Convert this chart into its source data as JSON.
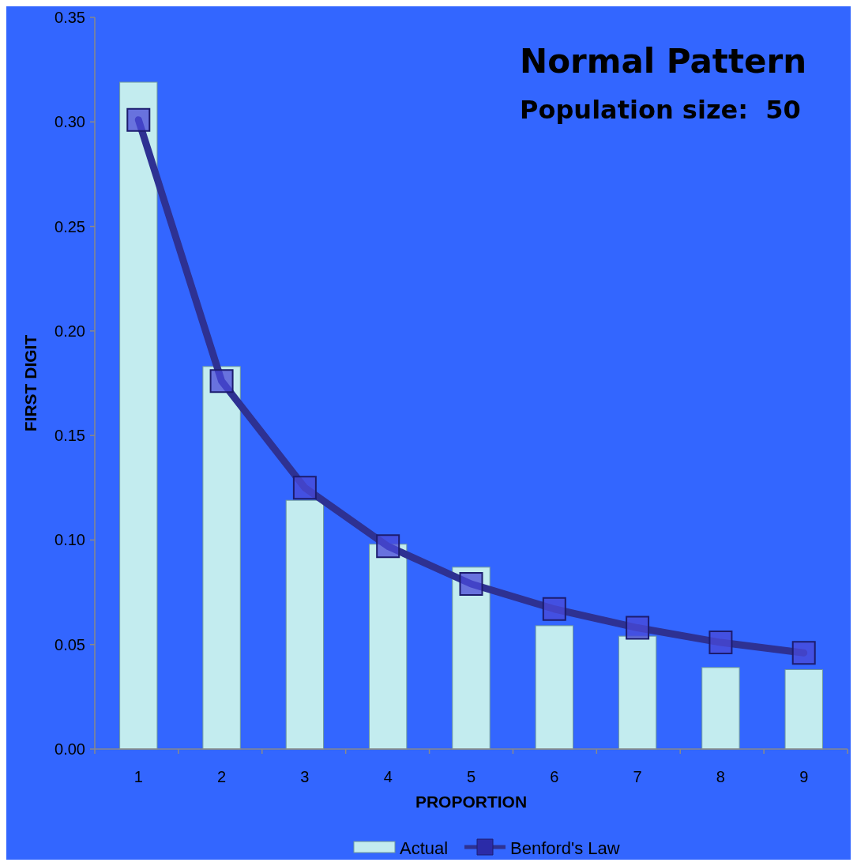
{
  "chart_data": {
    "type": "bar",
    "title": "Normal Pattern",
    "subtitle": "Population size:  50",
    "xlabel": "PROPORTION",
    "ylabel": "FIRST DIGIT",
    "categories": [
      "1",
      "2",
      "3",
      "4",
      "5",
      "6",
      "7",
      "8",
      "9"
    ],
    "series": [
      {
        "name": "Actual",
        "color": "#c3ecef",
        "values": [
          0.319,
          0.183,
          0.119,
          0.098,
          0.087,
          0.059,
          0.054,
          0.039,
          0.038
        ]
      },
      {
        "name": "Benford's Law",
        "type": "line",
        "color": "#2e3192",
        "marker": "square",
        "values": [
          0.301,
          0.176,
          0.125,
          0.097,
          0.079,
          0.067,
          0.058,
          0.051,
          0.046
        ]
      }
    ],
    "ylim": [
      0,
      0.35
    ],
    "yticks": [
      {
        "value": 0,
        "label": "0.00"
      },
      {
        "value": 0.05,
        "label": "0.05"
      },
      {
        "value": 0.1,
        "label": "0.10"
      },
      {
        "value": 0.15,
        "label": "0.15"
      },
      {
        "value": 0.2,
        "label": "0.20"
      },
      {
        "value": 0.25,
        "label": "0.25"
      },
      {
        "value": 0.3,
        "label": "0.30"
      },
      {
        "value": 0.35,
        "label": "0.35"
      }
    ],
    "grid": false,
    "legend": "bottom"
  }
}
